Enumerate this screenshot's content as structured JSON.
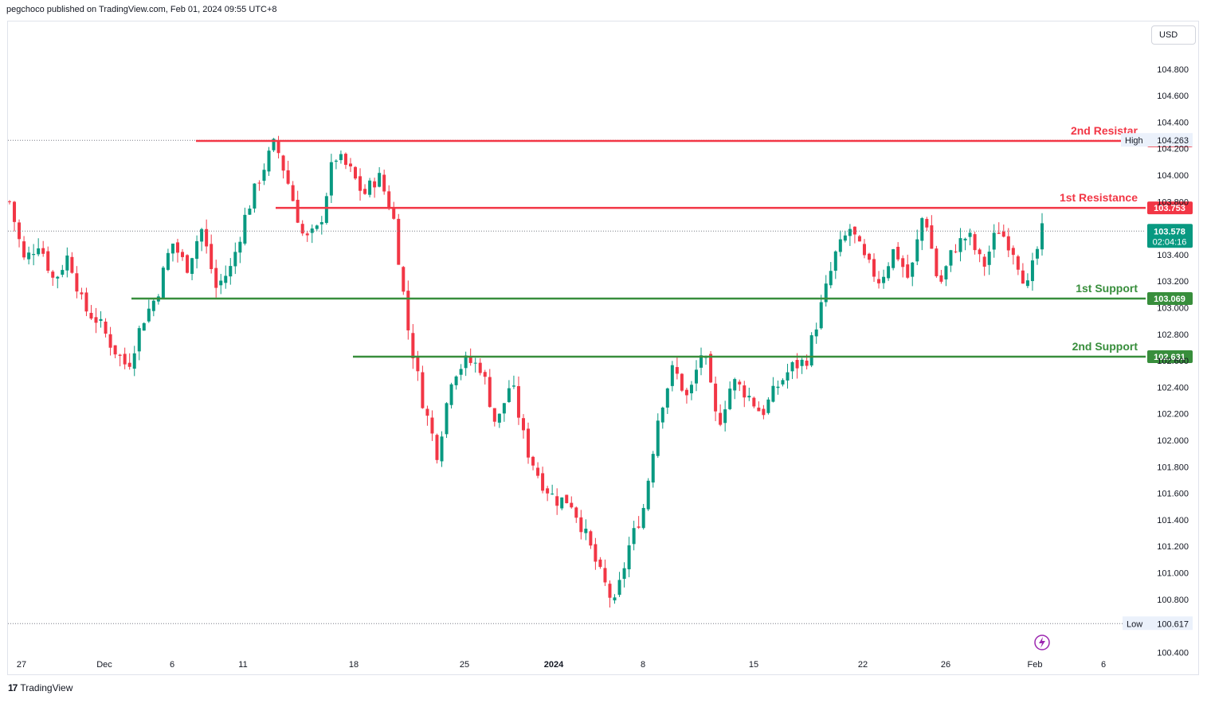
{
  "header": {
    "text": "pegchoco published on TradingView.com, Feb 01, 2024 09:55 UTC+8"
  },
  "currency": "USD",
  "footer": {
    "brand": "TradingView"
  },
  "colors": {
    "up": "#089981",
    "down": "#f23645",
    "resistance": "#f23645",
    "support": "#388e3c",
    "grid_text": "#131722"
  },
  "chart_data": {
    "type": "candlestick",
    "y_ticks": [
      "104.800",
      "104.600",
      "104.400",
      "104.200",
      "104.000",
      "103.800",
      "103.400",
      "103.200",
      "103.000",
      "102.800",
      "102.600",
      "102.400",
      "102.200",
      "102.000",
      "101.800",
      "101.600",
      "101.400",
      "101.200",
      "101.000",
      "100.800",
      "100.400"
    ],
    "x_ticks": [
      "27",
      "Dec",
      "6",
      "11",
      "18",
      "25",
      "2024",
      "8",
      "15",
      "22",
      "26",
      "Feb",
      "6"
    ],
    "levels": [
      {
        "label": "2nd Resistar",
        "value": 104.258,
        "value_text": "104.258",
        "kind": "resistance"
      },
      {
        "label": "1st Resistance",
        "value": 103.753,
        "value_text": "103.753",
        "kind": "resistance"
      },
      {
        "label": "1st Support",
        "value": 103.069,
        "value_text": "103.069",
        "kind": "support"
      },
      {
        "label": "2nd Support",
        "value": 102.631,
        "value_text": "102.631",
        "kind": "support"
      }
    ],
    "high": {
      "label": "High",
      "value": 104.263,
      "value_text": "104.263"
    },
    "low": {
      "label": "Low",
      "value": 100.617,
      "value_text": "100.617"
    },
    "last": {
      "value": 103.578,
      "value_text": "103.578",
      "countdown": "02:04:16"
    },
    "waypoints": [
      103.8,
      103.35,
      103.5,
      103.2,
      103.4,
      103.0,
      102.9,
      102.7,
      102.55,
      102.9,
      103.1,
      103.5,
      103.3,
      103.6,
      103.15,
      103.3,
      103.7,
      104.0,
      104.25,
      103.9,
      103.5,
      103.6,
      104.15,
      104.05,
      103.85,
      104.0,
      103.7,
      102.85,
      102.3,
      101.9,
      102.5,
      102.6,
      102.55,
      102.1,
      102.45,
      101.95,
      101.7,
      101.55,
      101.55,
      101.3,
      101.0,
      100.75,
      101.2,
      101.5,
      102.2,
      102.55,
      102.3,
      102.7,
      102.1,
      102.45,
      102.35,
      102.2,
      102.4,
      102.55,
      102.6,
      103.0,
      103.4,
      103.6,
      103.35,
      103.2,
      103.45,
      103.2,
      103.75,
      103.15,
      103.45,
      103.55,
      103.3,
      103.6,
      103.45,
      103.15,
      103.578
    ],
    "stats_note": ""
  }
}
